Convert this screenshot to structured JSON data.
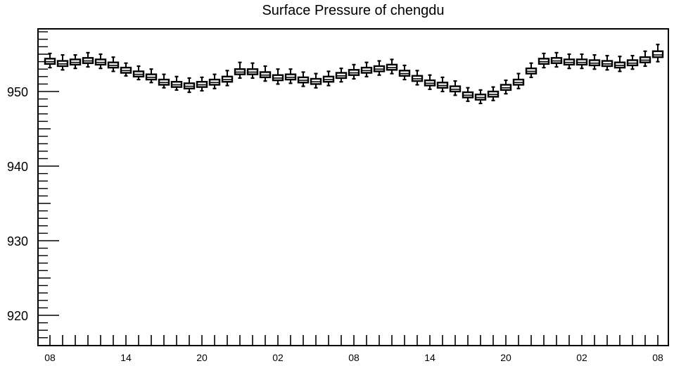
{
  "chart_data": {
    "type": "box",
    "title": "Surface Pressure of chengdu",
    "xlabel": "",
    "ylabel": "",
    "ylim": [
      916,
      959
    ],
    "y_ticks": [
      920,
      930,
      940,
      950
    ],
    "y_tick_labels": [
      "920",
      "930",
      "940",
      "950"
    ],
    "x_tick_labels": [
      "08",
      "14",
      "20",
      "02",
      "08",
      "14",
      "20",
      "02",
      "08"
    ],
    "x_tick_label_hours": [
      0,
      6,
      12,
      18,
      24,
      30,
      36,
      42,
      48
    ],
    "grid": false,
    "legend": "none",
    "series": [
      {
        "hours": [
          0,
          1,
          2,
          3,
          4,
          5,
          6,
          7,
          8,
          9,
          10,
          11,
          12,
          13,
          14,
          15,
          16,
          17,
          18,
          19,
          20,
          21,
          22,
          23,
          24,
          25,
          26,
          27,
          28,
          29,
          30,
          31,
          32,
          33,
          34,
          35,
          36,
          37,
          38,
          39,
          40,
          41,
          42,
          43,
          44,
          45,
          46,
          47,
          48
        ],
        "median": [
          954.0,
          953.7,
          953.9,
          954.1,
          953.9,
          953.5,
          952.8,
          952.3,
          951.9,
          951.2,
          950.9,
          950.7,
          950.9,
          951.2,
          951.6,
          952.6,
          952.6,
          952.2,
          951.8,
          951.9,
          951.5,
          951.3,
          951.6,
          952.1,
          952.5,
          952.8,
          953.0,
          953.2,
          952.4,
          951.7,
          951.1,
          950.8,
          950.3,
          949.5,
          949.2,
          949.6,
          950.5,
          951.2,
          952.7,
          954.0,
          954.1,
          953.9,
          953.9,
          953.8,
          953.7,
          953.5,
          953.8,
          954.2,
          954.9
        ],
        "q1": [
          953.7,
          953.4,
          953.6,
          953.8,
          953.6,
          953.2,
          952.5,
          952.0,
          951.6,
          950.9,
          950.6,
          950.4,
          950.6,
          950.9,
          951.3,
          952.3,
          952.3,
          951.9,
          951.5,
          951.6,
          951.2,
          951.0,
          951.3,
          951.8,
          952.2,
          952.5,
          952.7,
          952.9,
          952.1,
          951.4,
          950.8,
          950.5,
          950.0,
          949.2,
          948.9,
          949.3,
          950.2,
          950.9,
          952.4,
          953.7,
          953.8,
          953.6,
          953.6,
          953.5,
          953.4,
          953.2,
          953.5,
          953.9,
          954.6
        ],
        "q3": [
          954.4,
          954.1,
          954.3,
          954.5,
          954.3,
          953.9,
          953.2,
          952.7,
          952.3,
          951.6,
          951.3,
          951.1,
          951.3,
          951.6,
          952.0,
          953.0,
          953.0,
          952.6,
          952.2,
          952.3,
          951.9,
          951.7,
          952.0,
          952.5,
          952.9,
          953.2,
          953.4,
          953.6,
          952.8,
          952.1,
          951.5,
          951.2,
          950.7,
          949.9,
          949.6,
          950.0,
          950.9,
          951.6,
          953.1,
          954.4,
          954.5,
          954.3,
          954.3,
          954.2,
          954.1,
          953.9,
          954.2,
          954.6,
          955.4
        ],
        "whisker_low": [
          953.2,
          952.9,
          953.1,
          953.3,
          953.1,
          952.7,
          952.1,
          951.6,
          951.2,
          950.5,
          950.2,
          949.9,
          950.1,
          950.4,
          950.8,
          951.8,
          951.8,
          951.4,
          951.0,
          951.1,
          950.7,
          950.5,
          950.8,
          951.3,
          951.7,
          952.0,
          952.2,
          952.4,
          951.6,
          950.9,
          950.3,
          950.0,
          949.5,
          948.7,
          948.4,
          948.8,
          949.7,
          950.4,
          951.9,
          953.2,
          953.3,
          953.1,
          953.1,
          953.0,
          952.9,
          952.7,
          953.0,
          953.4,
          954.0
        ],
        "whisker_high": [
          955.1,
          954.9,
          954.9,
          955.2,
          955.0,
          954.6,
          953.8,
          953.4,
          953.0,
          952.3,
          952.0,
          951.8,
          951.9,
          952.3,
          952.8,
          953.9,
          953.8,
          953.4,
          953.0,
          953.0,
          952.6,
          952.4,
          952.7,
          953.1,
          953.6,
          953.9,
          954.1,
          954.3,
          953.5,
          952.8,
          952.2,
          951.9,
          951.4,
          950.5,
          950.2,
          950.6,
          951.5,
          952.4,
          953.8,
          955.1,
          955.2,
          955.0,
          955.0,
          954.9,
          954.8,
          954.7,
          954.8,
          955.4,
          956.3
        ]
      }
    ]
  }
}
